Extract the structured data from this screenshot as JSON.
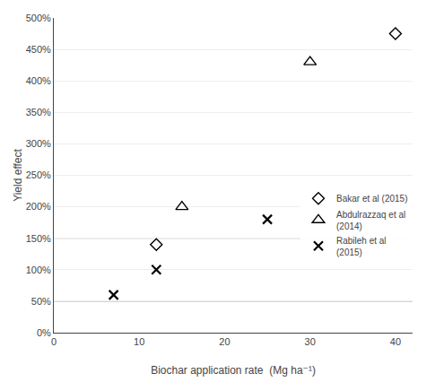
{
  "chart_data": {
    "type": "scatter",
    "xlabel": "Biochar application rate  (Mg ha⁻¹)",
    "ylabel": "Yield effect",
    "series": [
      {
        "name": "Bakar et al (2015)",
        "x": [
          12,
          40
        ],
        "values": [
          1.4,
          4.75
        ],
        "marker": "diamond",
        "color": "#000000"
      },
      {
        "name": "Abdulrazzaq et al\n(2014)",
        "x": [
          15,
          30
        ],
        "values": [
          2.0,
          4.3
        ],
        "marker": "triangle-up",
        "color": "#000000"
      },
      {
        "name": "Rabileh et al\n(2015)",
        "x": [
          7,
          12,
          25
        ],
        "values": [
          0.6,
          1.0,
          1.8
        ],
        "marker": "x",
        "color": "#000000"
      }
    ],
    "hlines": {
      "values": [
        0.5,
        1.5,
        2.5
      ],
      "color": "#999999"
    },
    "xlim": [
      0,
      42
    ],
    "xticks": [
      0,
      10,
      20,
      30,
      40
    ],
    "ylim": [
      0.0,
      5.0
    ],
    "yticks": [
      {
        "value": 0.0,
        "label": "0%"
      },
      {
        "value": 0.5,
        "label": "50%"
      },
      {
        "value": 1.0,
        "label": "100%"
      },
      {
        "value": 1.5,
        "label": "150%"
      },
      {
        "value": 2.0,
        "label": "200%"
      },
      {
        "value": 2.5,
        "label": "250%"
      },
      {
        "value": 3.0,
        "label": "300%"
      },
      {
        "value": 3.5,
        "label": "350%"
      },
      {
        "value": 4.0,
        "label": "400%"
      },
      {
        "value": 4.5,
        "label": "450%"
      },
      {
        "value": 5.0,
        "label": "500%"
      }
    ],
    "grid": true,
    "legend": "lower right"
  }
}
